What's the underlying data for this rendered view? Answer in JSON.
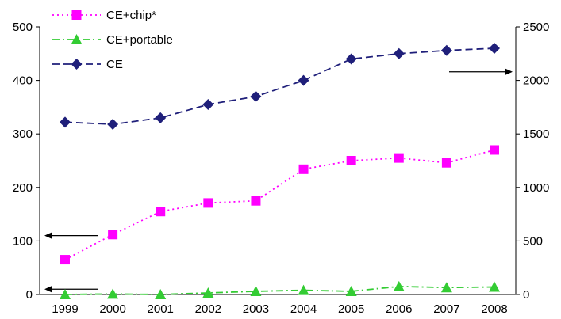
{
  "chart_data": {
    "type": "line",
    "categories": [
      "1999",
      "2000",
      "2001",
      "2002",
      "2003",
      "2004",
      "2005",
      "2006",
      "2007",
      "2008"
    ],
    "left_axis": {
      "ylim": [
        0,
        500
      ],
      "ticks": [
        "0",
        "100",
        "200",
        "300",
        "400",
        "500"
      ]
    },
    "right_axis": {
      "ylim": [
        0,
        2500
      ],
      "ticks": [
        "0",
        "500",
        "1000",
        "1500",
        "2000",
        "2500"
      ]
    },
    "series": [
      {
        "name": "CE+chip*",
        "axis": "left",
        "color": "#ff00ff",
        "dash": "dotted",
        "marker": "square",
        "values": [
          65,
          112,
          155,
          171,
          175,
          234,
          250,
          255,
          246,
          270
        ]
      },
      {
        "name": "CE+portable",
        "axis": "left",
        "color": "#33cc33",
        "dash": "dash-dot",
        "marker": "triangle",
        "values": [
          0,
          1,
          0,
          3,
          6,
          8,
          6,
          15,
          13,
          14
        ]
      },
      {
        "name": "CE",
        "axis": "right",
        "color": "#1f1f7a",
        "dash": "dashed",
        "marker": "diamond",
        "values": [
          1610,
          1590,
          1650,
          1775,
          1850,
          2000,
          2200,
          2250,
          2280,
          2300
        ]
      }
    ],
    "legend": {
      "placement": "top-left"
    },
    "annotations": [
      {
        "type": "arrow",
        "direction": "left",
        "points_to_axis": "left",
        "level": 110
      },
      {
        "type": "arrow",
        "direction": "left",
        "points_to_axis": "left",
        "level": 10
      },
      {
        "type": "arrow",
        "direction": "right",
        "points_to_axis": "right",
        "level": 2080
      }
    ],
    "grid": false
  }
}
